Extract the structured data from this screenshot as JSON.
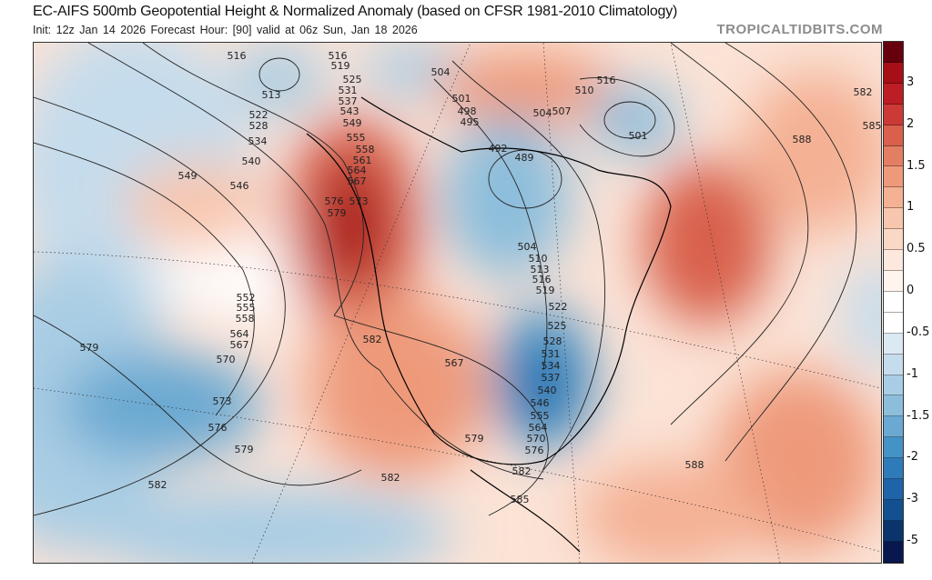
{
  "header": {
    "title": "EC-AIFS 500mb Geopotential Height & Normalized Anomaly (based on CFSR 1981-2010 Climatology)",
    "subtitle": "Init: 12z Jan 14 2026   Forecast Hour: [90]   valid at 06z Sun, Jan 18 2026",
    "brand": "TROPICALTIDBITS.COM"
  },
  "colorbar": {
    "labels": [
      "3",
      "2",
      "1.5",
      "1",
      "0.5",
      "0",
      "-0.5",
      "-1",
      "-1.5",
      "-2",
      "-3",
      "-5"
    ],
    "colors": [
      "#67000d",
      "#a50f15",
      "#bd1d24",
      "#cb3a37",
      "#d8604c",
      "#e37e63",
      "#ee9a7a",
      "#f4b194",
      "#f8c6ae",
      "#fbd8c6",
      "#fde8dd",
      "#fff4ee",
      "#ffffff",
      "#ffffff",
      "#dbe9f3",
      "#c5dcec",
      "#a9cde4",
      "#8cbedc",
      "#6aa9d2",
      "#4592c6",
      "#2f7bba",
      "#1f64a8",
      "#12508f",
      "#0a346b",
      "#08184f"
    ]
  },
  "map": {
    "contour_labels": [
      "516",
      "513",
      "516",
      "519",
      "525",
      "531",
      "537",
      "543",
      "549",
      "522",
      "528",
      "534",
      "540",
      "546",
      "549",
      "555",
      "558",
      "561",
      "564",
      "567",
      "576",
      "573",
      "579",
      "552",
      "555",
      "558",
      "564",
      "567",
      "570",
      "573",
      "576",
      "579",
      "582",
      "579",
      "582",
      "567",
      "579",
      "582",
      "585",
      "582",
      "504",
      "501",
      "498",
      "495",
      "492",
      "489",
      "504",
      "507",
      "510",
      "516",
      "501",
      "504",
      "510",
      "513",
      "516",
      "519",
      "522",
      "525",
      "528",
      "531",
      "534",
      "537",
      "540",
      "546",
      "555",
      "564",
      "570",
      "576",
      "582",
      "585",
      "588",
      "588"
    ]
  }
}
